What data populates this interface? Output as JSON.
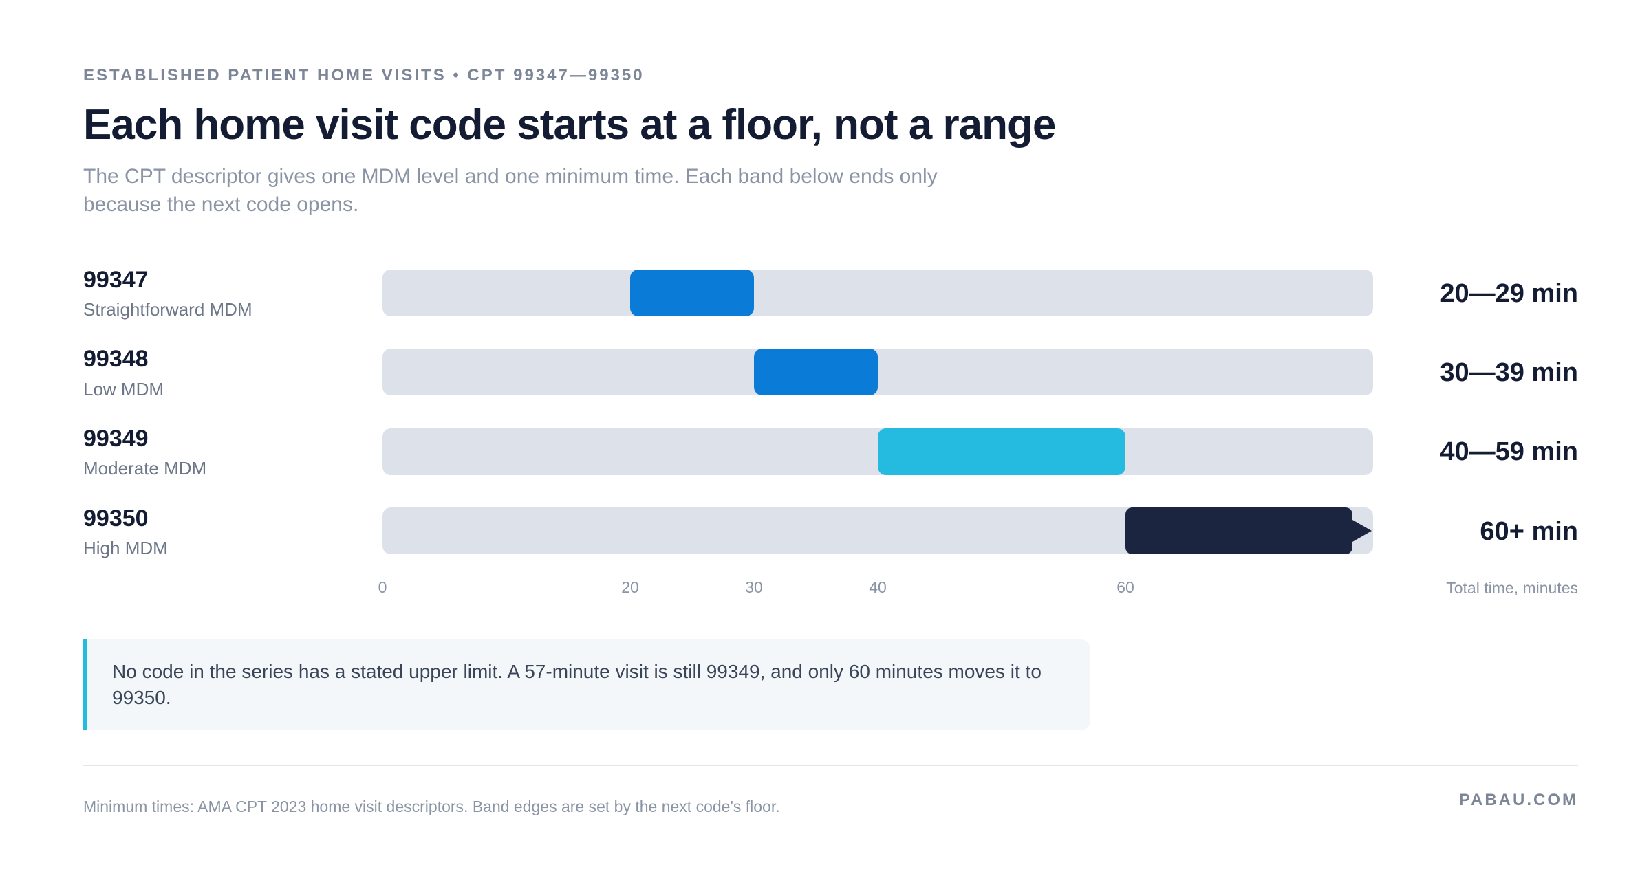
{
  "header": {
    "eyebrow": "ESTABLISHED PATIENT HOME VISITS • CPT 99347—99350",
    "title": "Each home visit code starts at a floor, not a range",
    "subtitle": "The CPT descriptor gives one MDM level and one minimum time. Each band below ends only because the next code opens."
  },
  "rows": [
    {
      "code": "99347",
      "mdm": "Straightforward MDM",
      "range_label": "20—29 min"
    },
    {
      "code": "99348",
      "mdm": "Low MDM",
      "range_label": "30—39 min"
    },
    {
      "code": "99349",
      "mdm": "Moderate MDM",
      "range_label": "40—59 min"
    },
    {
      "code": "99350",
      "mdm": "High MDM",
      "range_label": "60+ min"
    }
  ],
  "chart_data": {
    "type": "bar",
    "orientation": "horizontal",
    "categories": [
      "99347",
      "99348",
      "99349",
      "99350"
    ],
    "series": [
      {
        "start": [
          20,
          30,
          40,
          60
        ],
        "end": [
          30,
          40,
          60,
          null
        ]
      }
    ],
    "open_ended": [
      false,
      false,
      false,
      true
    ],
    "colors": [
      "#0a7bd6",
      "#0a7bd6",
      "#25bbe0",
      "#1b2540"
    ],
    "track_color": "#dde1ea",
    "xlim": [
      0,
      80
    ],
    "x_ticks": [
      0,
      20,
      30,
      40,
      60
    ],
    "xlabel": "Total time, minutes",
    "grid": false
  },
  "callout": {
    "text": "No code in the series has a stated upper limit. A 57-minute visit is still 99349, and only 60 minutes moves it to 99350."
  },
  "footer": {
    "note": "Minimum times: AMA CPT 2023 home visit descriptors. Band edges are set by the next code's floor.",
    "brand": "PABAU.COM"
  }
}
